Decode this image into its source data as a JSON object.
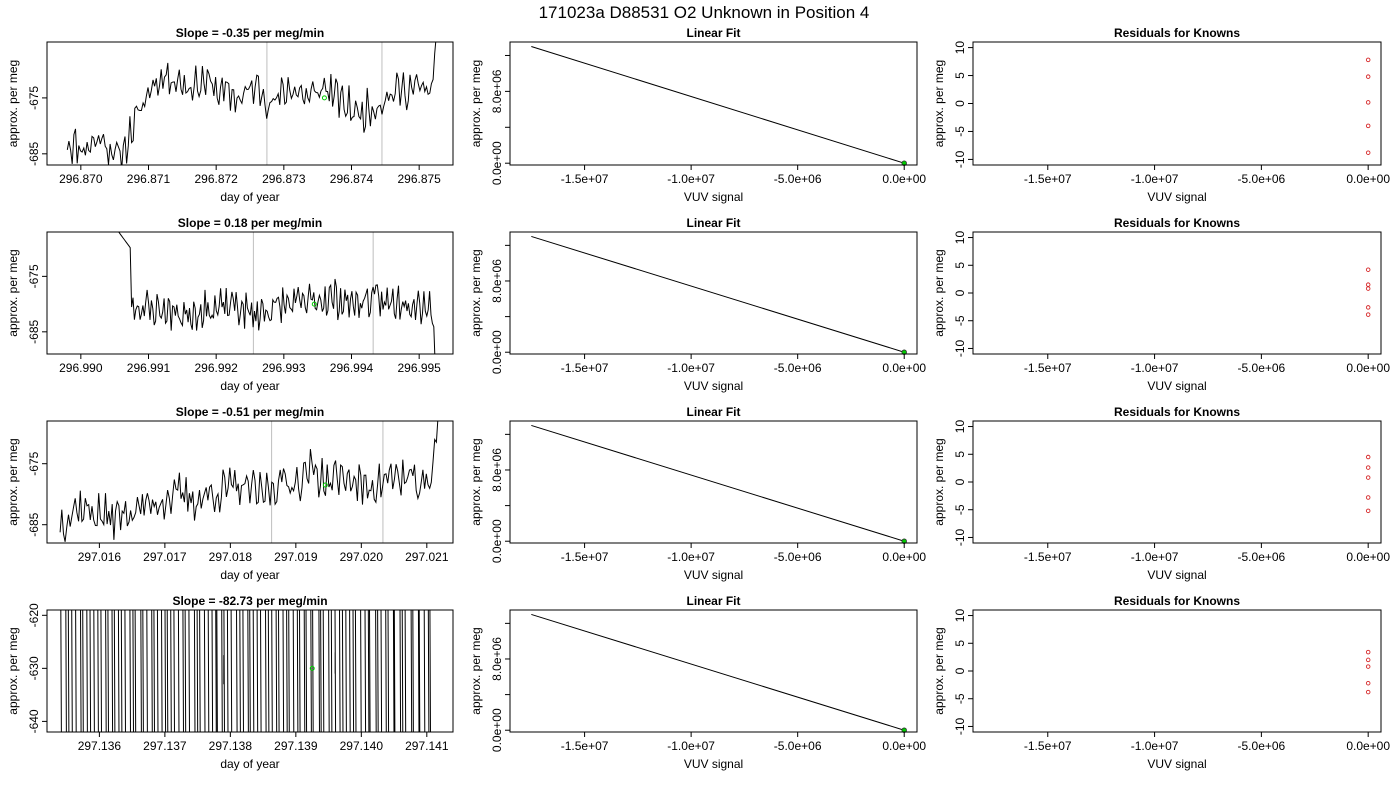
{
  "figure": {
    "title": "171023a      D88531    O2 Unknown in Position  4",
    "colors": {
      "trace": "#000000",
      "vline": "#bebebe",
      "green": "#00cc00",
      "red": "#d62728"
    }
  },
  "chart_data": [
    {
      "type": "line",
      "row": 1,
      "col": 1,
      "title": "Slope =  -0.35  per meg/min",
      "xlabel": "day of year",
      "ylabel": "approx. per meg",
      "xlim": [
        296.8695,
        296.8755
      ],
      "ylim": [
        -687,
        -665
      ],
      "xticks": [
        296.87,
        296.871,
        296.872,
        296.873,
        296.874,
        296.875
      ],
      "xtick_labels": [
        "296.870",
        "296.871",
        "296.872",
        "296.873",
        "296.874",
        "296.875"
      ],
      "yticks": [
        -685,
        -675
      ],
      "ytick_labels": [
        "-685",
        "-675"
      ],
      "vlines": [
        296.87275,
        296.87445
      ],
      "marker": {
        "x": 296.8736,
        "y": -675
      },
      "trace": {
        "x0": 296.8698,
        "x1": 296.8754,
        "end_rise": true,
        "start_high": false,
        "low": -683.5,
        "high": -672.5,
        "noise": 2.5,
        "seed": 11,
        "levels": [
          -683,
          -684,
          -682,
          -686,
          -679,
          -672,
          -671,
          -673,
          -672,
          -674,
          -675,
          -673,
          -676,
          -673,
          -675,
          -673,
          -676,
          -678,
          -676,
          -674,
          -673,
          -674,
          -673
        ]
      }
    },
    {
      "type": "line",
      "row": 1,
      "col": 2,
      "title": "Linear Fit",
      "xlabel": "VUV signal",
      "ylabel": "approx. per meg",
      "xlim": [
        -18500000,
        600000
      ],
      "ylim": [
        -200000,
        13500000
      ],
      "xticks": [
        -15000000,
        -10000000,
        -5000000,
        0
      ],
      "xtick_labels": [
        "-1.5e+07",
        "-1.0e+07",
        "-5.0e+06",
        "0.0e+00"
      ],
      "yticks": [
        0,
        4000000,
        8000000,
        12000000
      ],
      "ytick_labels": [
        "0.0e+00",
        "",
        "8.0e+06",
        ""
      ],
      "line": [
        [
          -17500000,
          13000000
        ],
        [
          0,
          0
        ]
      ],
      "points": [
        [
          0,
          0
        ]
      ]
    },
    {
      "type": "scatter",
      "row": 1,
      "col": 3,
      "title": "Residuals for Knowns",
      "xlabel": "VUV signal",
      "ylabel": "approx. per meg",
      "xlim": [
        -18500000,
        600000
      ],
      "ylim": [
        -11,
        11
      ],
      "xticks": [
        -15000000,
        -10000000,
        -5000000,
        0
      ],
      "xtick_labels": [
        "-1.5e+07",
        "-1.0e+07",
        "-5.0e+06",
        "0.0e+00"
      ],
      "yticks": [
        -10,
        -5,
        0,
        5,
        10
      ],
      "ytick_labels": [
        "-10",
        "-5",
        "0",
        "5",
        "10"
      ],
      "points": [
        [
          0,
          7.8
        ],
        [
          0,
          4.8
        ],
        [
          0,
          0.2
        ],
        [
          0,
          -4.0
        ],
        [
          0,
          -8.8
        ]
      ]
    },
    {
      "type": "line",
      "row": 2,
      "col": 1,
      "title": "Slope =  0.18  per meg/min",
      "xlabel": "day of year",
      "ylabel": "approx. per meg",
      "xlim": [
        296.9895,
        296.9955
      ],
      "ylim": [
        -689,
        -667
      ],
      "xticks": [
        296.99,
        296.991,
        296.992,
        296.993,
        296.994,
        296.995
      ],
      "xtick_labels": [
        "296.990",
        "296.991",
        "296.992",
        "296.993",
        "296.994",
        "296.995"
      ],
      "yticks": [
        -685,
        -675
      ],
      "ytick_labels": [
        "-685",
        "-675"
      ],
      "vlines": [
        296.99255,
        296.99432
      ],
      "marker": {
        "x": 296.99345,
        "y": -680
      },
      "trace": {
        "x0": 296.9905,
        "x1": 296.9953,
        "end_rise": false,
        "end_drop": true,
        "start_high": true,
        "low": -683.5,
        "high": -676.5,
        "noise": 2.5,
        "seed": 23,
        "levels": [
          -672,
          -680,
          -681,
          -681,
          -682,
          -681,
          -681,
          -680,
          -682,
          -681,
          -680,
          -680,
          -679,
          -679,
          -680,
          -679,
          -680,
          -679,
          -680,
          -680
        ]
      }
    },
    {
      "type": "line",
      "row": 2,
      "col": 2,
      "title": "Linear Fit",
      "xlabel": "VUV signal",
      "ylabel": "approx. per meg",
      "xlim": [
        -18500000,
        600000
      ],
      "ylim": [
        -200000,
        13500000
      ],
      "xticks": [
        -15000000,
        -10000000,
        -5000000,
        0
      ],
      "xtick_labels": [
        "-1.5e+07",
        "-1.0e+07",
        "-5.0e+06",
        "0.0e+00"
      ],
      "yticks": [
        0,
        4000000,
        8000000,
        12000000
      ],
      "ytick_labels": [
        "0.0e+00",
        "",
        "8.0e+06",
        ""
      ],
      "line": [
        [
          -17500000,
          13000000
        ],
        [
          0,
          0
        ]
      ],
      "points": [
        [
          0,
          0
        ]
      ]
    },
    {
      "type": "scatter",
      "row": 2,
      "col": 3,
      "title": "Residuals for Knowns",
      "xlabel": "VUV signal",
      "ylabel": "approx. per meg",
      "xlim": [
        -18500000,
        600000
      ],
      "ylim": [
        -11,
        11
      ],
      "xticks": [
        -15000000,
        -10000000,
        -5000000,
        0
      ],
      "xtick_labels": [
        "-1.5e+07",
        "-1.0e+07",
        "-5.0e+06",
        "0.0e+00"
      ],
      "yticks": [
        -10,
        -5,
        0,
        5,
        10
      ],
      "ytick_labels": [
        "-10",
        "-5",
        "0",
        "5",
        "10"
      ],
      "points": [
        [
          0,
          4.2
        ],
        [
          0,
          1.5
        ],
        [
          0,
          0.8
        ],
        [
          0,
          -2.6
        ],
        [
          0,
          -3.9
        ]
      ]
    },
    {
      "type": "line",
      "row": 3,
      "col": 1,
      "title": "Slope =  -0.51  per meg/min",
      "xlabel": "day of year",
      "ylabel": "approx. per meg",
      "xlim": [
        297.0152,
        297.0214
      ],
      "ylim": [
        -688,
        -668
      ],
      "xticks": [
        297.016,
        297.017,
        297.018,
        297.019,
        297.02,
        297.021
      ],
      "xtick_labels": [
        "297.016",
        "297.017",
        "297.018",
        "297.019",
        "297.020",
        "297.021"
      ],
      "yticks": [
        -685,
        -675
      ],
      "ytick_labels": [
        "-685",
        "-675"
      ],
      "vlines": [
        297.01863,
        297.02033
      ],
      "marker": {
        "x": 297.01945,
        "y": -678.5
      },
      "trace": {
        "x0": 297.0154,
        "x1": 297.0213,
        "end_rise": true,
        "start_high": false,
        "low": -685,
        "high": -673,
        "noise": 2.5,
        "seed": 37,
        "levels": [
          -685,
          -682,
          -683,
          -684,
          -683,
          -682,
          -681,
          -680,
          -681,
          -680,
          -679,
          -679,
          -680,
          -678,
          -678,
          -676,
          -678,
          -677,
          -679,
          -678,
          -677,
          -678,
          -679,
          -678
        ]
      }
    },
    {
      "type": "line",
      "row": 3,
      "col": 2,
      "title": "Linear Fit",
      "xlabel": "VUV signal",
      "ylabel": "approx. per meg",
      "xlim": [
        -18500000,
        600000
      ],
      "ylim": [
        -200000,
        13500000
      ],
      "xticks": [
        -15000000,
        -10000000,
        -5000000,
        0
      ],
      "xtick_labels": [
        "-1.5e+07",
        "-1.0e+07",
        "-5.0e+06",
        "0.0e+00"
      ],
      "yticks": [
        0,
        4000000,
        8000000,
        12000000
      ],
      "ytick_labels": [
        "0.0e+00",
        "",
        "8.0e+06",
        ""
      ],
      "line": [
        [
          -17500000,
          13000000
        ],
        [
          0,
          0
        ]
      ],
      "points": [
        [
          0,
          0
        ]
      ]
    },
    {
      "type": "scatter",
      "row": 3,
      "col": 3,
      "title": "Residuals for Knowns",
      "xlabel": "VUV signal",
      "ylabel": "approx. per meg",
      "xlim": [
        -18500000,
        600000
      ],
      "ylim": [
        -11,
        11
      ],
      "xticks": [
        -15000000,
        -10000000,
        -5000000,
        0
      ],
      "xtick_labels": [
        "-1.5e+07",
        "-1.0e+07",
        "-5.0e+06",
        "0.0e+00"
      ],
      "yticks": [
        -10,
        -5,
        0,
        5,
        10
      ],
      "ytick_labels": [
        "-10",
        "-5",
        "0",
        "5",
        "10"
      ],
      "points": [
        [
          0,
          4.5
        ],
        [
          0,
          2.6
        ],
        [
          0,
          0.8
        ],
        [
          0,
          -2.8
        ],
        [
          0,
          -5.2
        ]
      ]
    },
    {
      "type": "line",
      "row": 4,
      "col": 1,
      "title": "Slope =  -82.73  per meg/min",
      "xlabel": "day of year",
      "ylabel": "approx. per meg",
      "xlim": [
        297.1352,
        297.1414
      ],
      "ylim": [
        -642,
        -619
      ],
      "xticks": [
        297.136,
        297.137,
        297.138,
        297.139,
        297.14,
        297.141
      ],
      "xtick_labels": [
        "297.136",
        "297.137",
        "297.138",
        "297.139",
        "297.140",
        "297.141"
      ],
      "yticks": [
        -640,
        -630,
        -620
      ],
      "ytick_labels": [
        "-640",
        "-630",
        "-620"
      ],
      "vlines": [],
      "marker": {
        "x": 297.13925,
        "y": -630
      },
      "spikes": {
        "x0": 297.1354,
        "x1": 297.1411,
        "count": 105,
        "seed": 51
      }
    },
    {
      "type": "line",
      "row": 4,
      "col": 2,
      "title": "Linear Fit",
      "xlabel": "VUV signal",
      "ylabel": "approx. per meg",
      "xlim": [
        -18500000,
        600000
      ],
      "ylim": [
        -200000,
        13500000
      ],
      "xticks": [
        -15000000,
        -10000000,
        -5000000,
        0
      ],
      "xtick_labels": [
        "-1.5e+07",
        "-1.0e+07",
        "-5.0e+06",
        "0.0e+00"
      ],
      "yticks": [
        0,
        4000000,
        8000000,
        12000000
      ],
      "ytick_labels": [
        "0.0e+00",
        "",
        "8.0e+06",
        ""
      ],
      "line": [
        [
          -17500000,
          13000000
        ],
        [
          0,
          0
        ]
      ],
      "points": [
        [
          0,
          0
        ]
      ]
    },
    {
      "type": "scatter",
      "row": 4,
      "col": 3,
      "title": "Residuals for Knowns",
      "xlabel": "VUV signal",
      "ylabel": "approx. per meg",
      "xlim": [
        -18500000,
        600000
      ],
      "ylim": [
        -11,
        11
      ],
      "xticks": [
        -15000000,
        -10000000,
        -5000000,
        0
      ],
      "xtick_labels": [
        "-1.5e+07",
        "-1.0e+07",
        "-5.0e+06",
        "0.0e+00"
      ],
      "yticks": [
        -10,
        -5,
        0,
        5,
        10
      ],
      "ytick_labels": [
        "-10",
        "-5",
        "0",
        "5",
        "10"
      ],
      "points": [
        [
          0,
          3.4
        ],
        [
          0,
          2.0
        ],
        [
          0,
          0.8
        ],
        [
          0,
          -2.2
        ],
        [
          0,
          -3.8
        ]
      ]
    }
  ]
}
